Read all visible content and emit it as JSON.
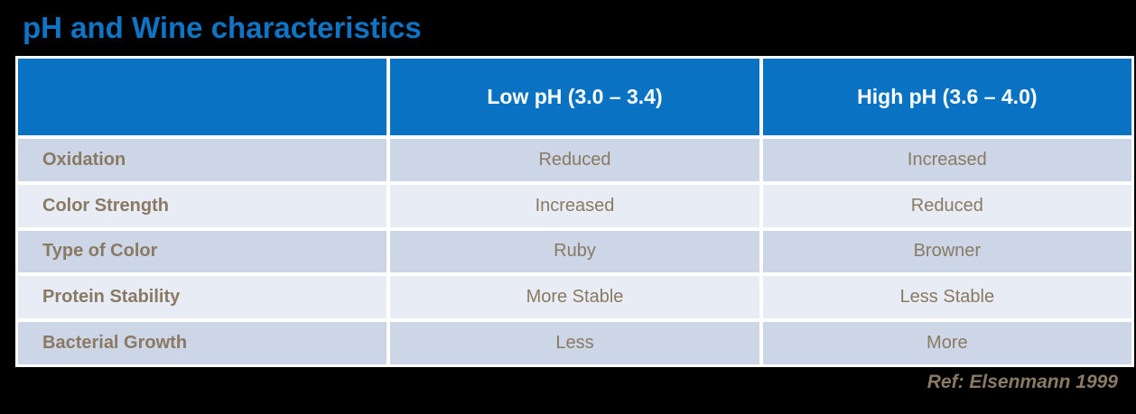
{
  "title": "pH and Wine characteristics",
  "colors": {
    "background_black": "#000000",
    "title_blue": "#0e74c4",
    "header_blue": "#0a72c2",
    "header_text_white": "#ffffff",
    "row_dark": "#ccd6e6",
    "row_light": "#e8ecf4",
    "body_text_brown": "#8a7963",
    "grid_white": "#ffffff"
  },
  "chart_data": {
    "type": "table",
    "title": "pH and Wine characteristics",
    "columns": [
      "",
      "Low pH (3.0 – 3.4)",
      "High pH (3.6 – 4.0)"
    ],
    "rows": [
      [
        "Oxidation",
        "Reduced",
        "Increased"
      ],
      [
        "Color Strength",
        "Increased",
        "Reduced"
      ],
      [
        "Type of Color",
        "Ruby",
        "Browner"
      ],
      [
        "Protein Stability",
        "More Stable",
        "Less Stable"
      ],
      [
        "Bacterial Growth",
        "Less",
        "More"
      ]
    ]
  },
  "footer": {
    "reference": "Ref: Elsenmann 1999"
  }
}
